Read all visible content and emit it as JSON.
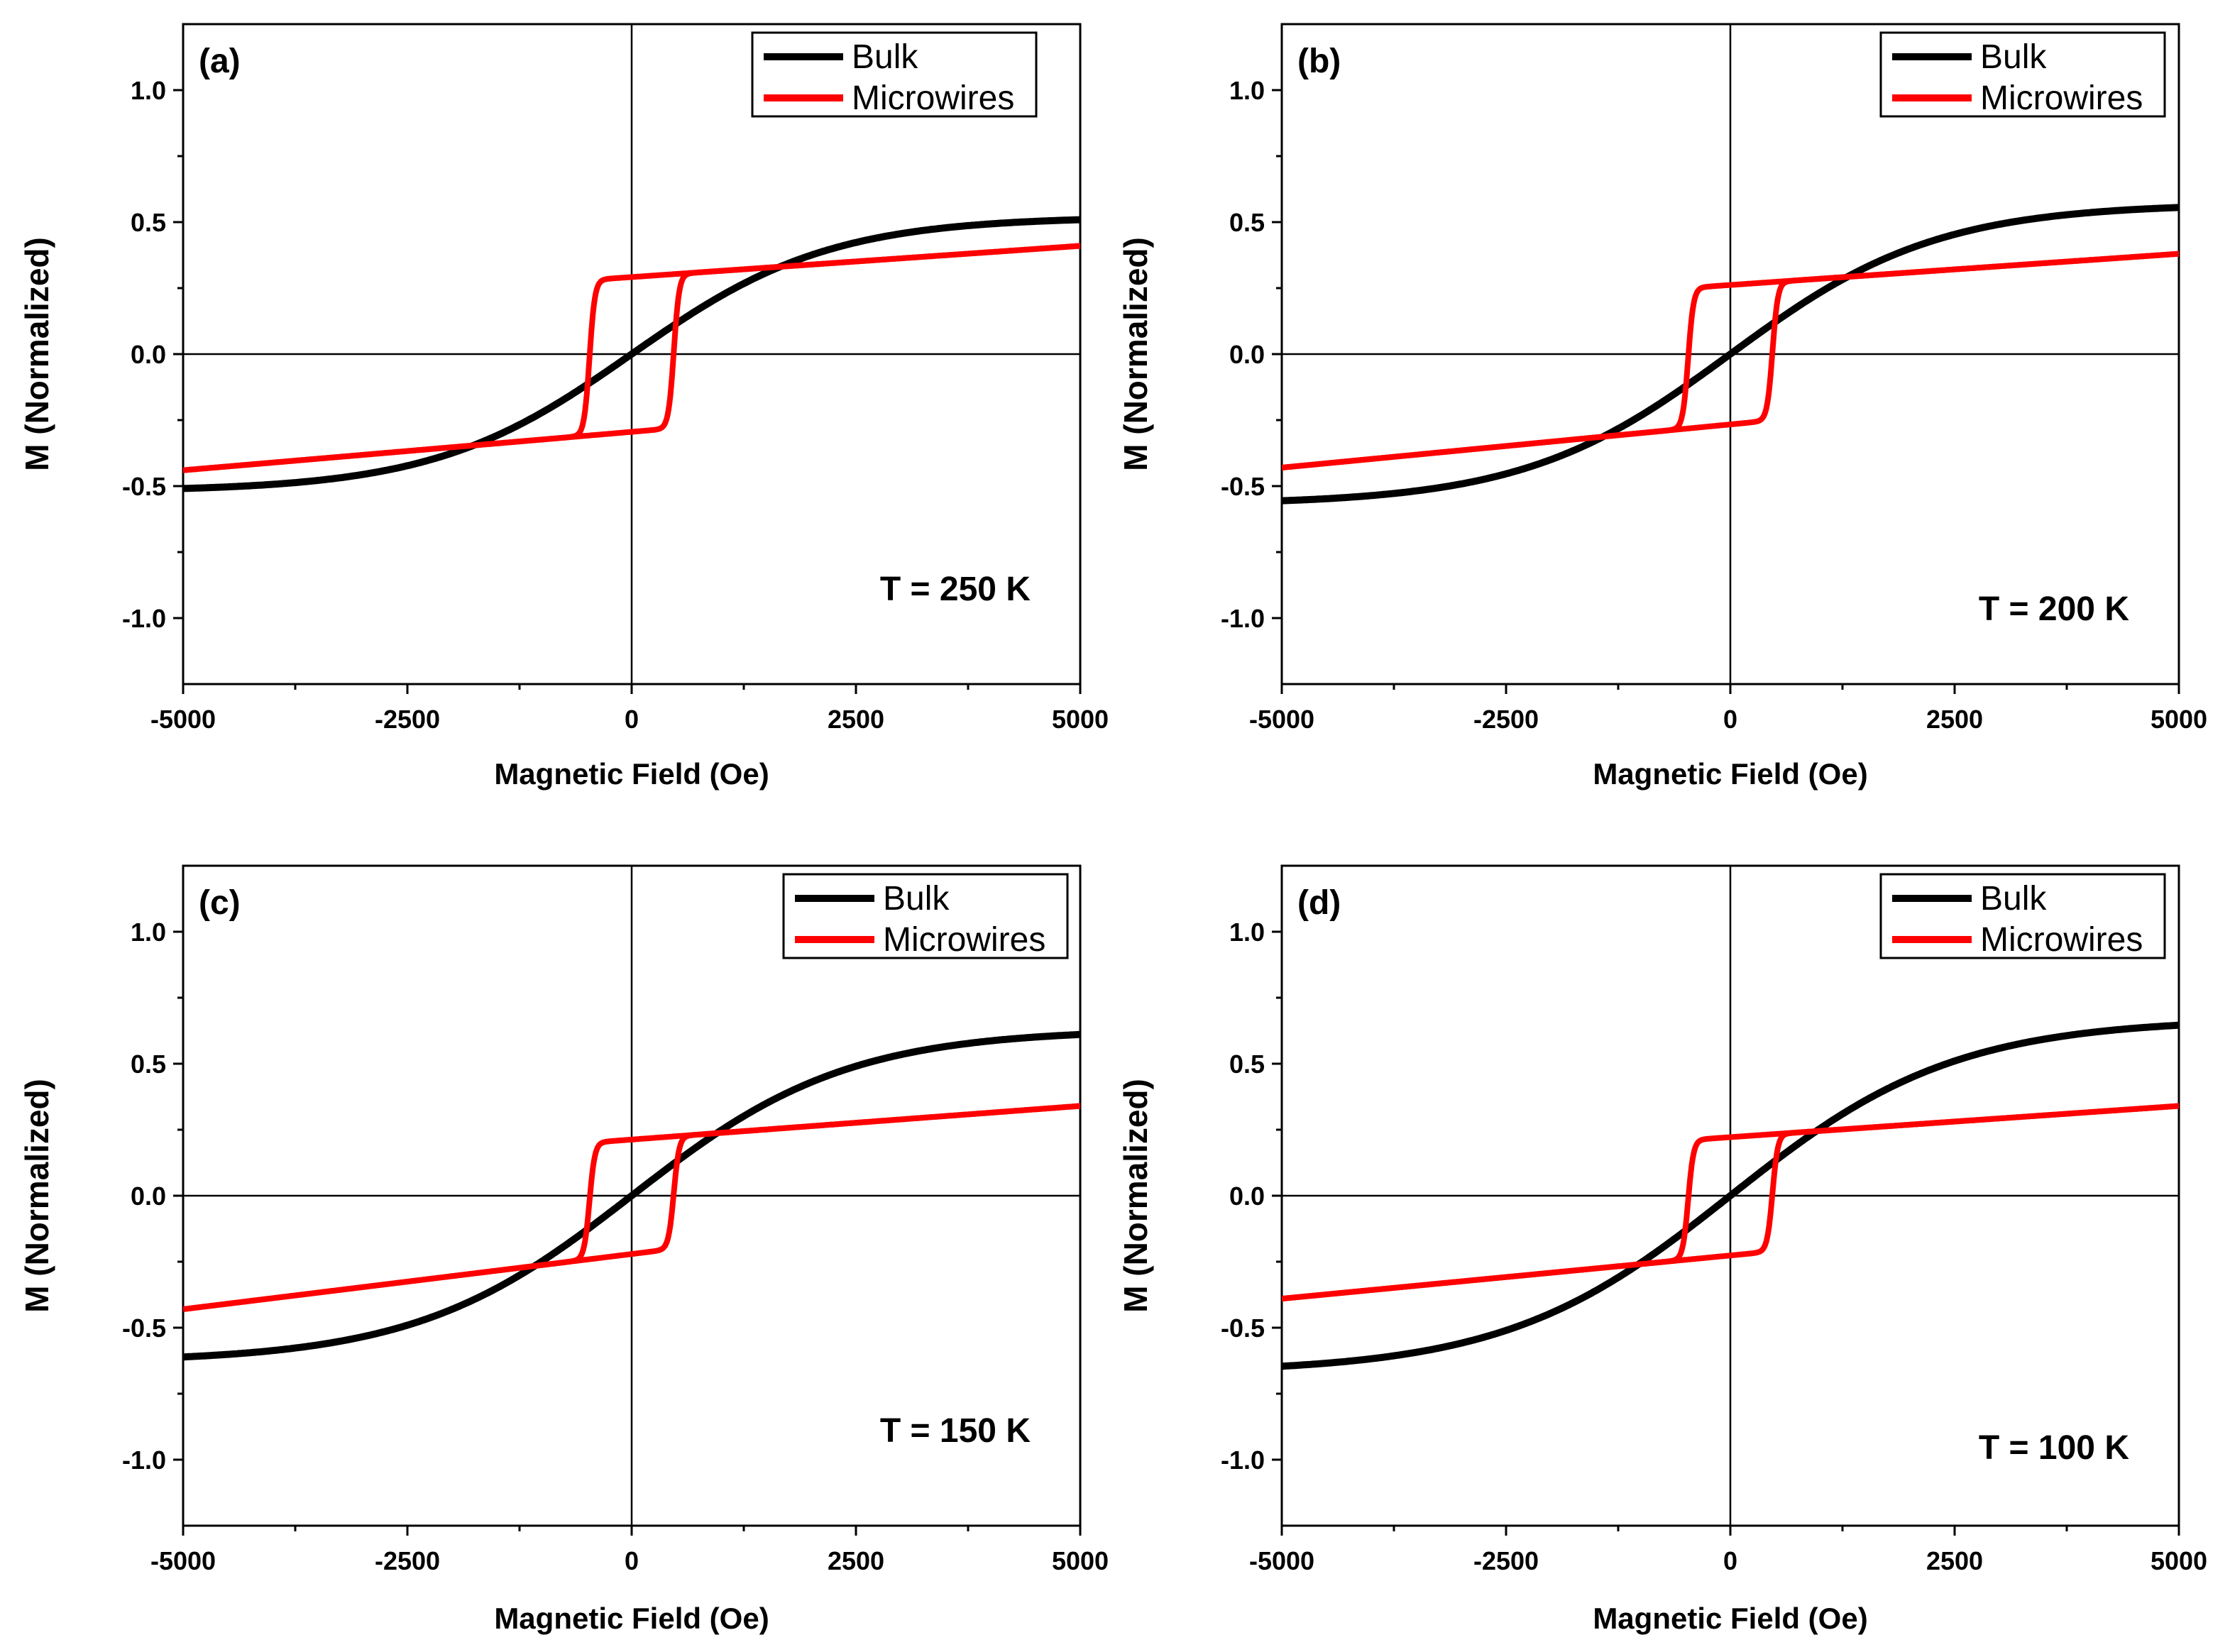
{
  "figure": {
    "description_type": "four-panel hysteresis loops"
  },
  "chart_data": [
    {
      "type": "line",
      "panel_label": "(a)",
      "annotation": "T = 250 K",
      "xlabel": "Magnetic Field (Oe)",
      "ylabel": "M (Normalized)",
      "xlim": [
        -5000,
        5000
      ],
      "ylim": [
        -1.25,
        1.25
      ],
      "xticks": [
        -5000,
        -2500,
        0,
        2500,
        5000
      ],
      "xtick_labels": [
        "-5000",
        "-2500",
        "0",
        "2500",
        "5000"
      ],
      "yticks": [
        1.0,
        0.5,
        0.0,
        -0.5,
        -1.0
      ],
      "ytick_labels": [
        "1.0",
        "0.5",
        "0.0",
        "-0.5",
        "-1.0"
      ],
      "legend_position": "top-right",
      "series": [
        {
          "name": "Bulk",
          "color": "#000000",
          "kind": "bulk",
          "ms": 0.52,
          "slope_h": 2200
        },
        {
          "name": "Microwires",
          "color": "#ff0000",
          "kind": "loop",
          "hc": 470,
          "sat": 0.28,
          "width": 60,
          "tail_pos": 0.41,
          "tail_neg": -0.44,
          "mid_pos": 0.32,
          "mid_neg": -0.32
        }
      ]
    },
    {
      "type": "line",
      "panel_label": "(b)",
      "annotation": "T = 200 K",
      "xlabel": "Magnetic Field (Oe)",
      "ylabel": "M (Normalized)",
      "xlim": [
        -5000,
        5000
      ],
      "ylim": [
        -1.25,
        1.25
      ],
      "xticks": [
        -5000,
        -2500,
        0,
        2500,
        5000
      ],
      "xtick_labels": [
        "-5000",
        "-2500",
        "0",
        "2500",
        "5000"
      ],
      "yticks": [
        1.0,
        0.5,
        0.0,
        -0.5,
        -1.0
      ],
      "ytick_labels": [
        "1.0",
        "0.5",
        "0.0",
        "-0.5",
        "-1.0"
      ],
      "legend_position": "top-right",
      "series": [
        {
          "name": "Bulk",
          "color": "#000000",
          "kind": "bulk",
          "ms": 0.57,
          "slope_h": 2300
        },
        {
          "name": "Microwires",
          "color": "#ff0000",
          "kind": "loop",
          "hc": 470,
          "sat": 0.25,
          "width": 60,
          "tail_pos": 0.38,
          "tail_neg": -0.43,
          "mid_pos": 0.3,
          "mid_neg": -0.3
        }
      ]
    },
    {
      "type": "line",
      "panel_label": "(c)",
      "annotation": "T = 150 K",
      "xlabel": "Magnetic Field (Oe)",
      "ylabel": "M (Normalized)",
      "xlim": [
        -5000,
        5000
      ],
      "ylim": [
        -1.25,
        1.25
      ],
      "xticks": [
        -5000,
        -2500,
        0,
        2500,
        5000
      ],
      "xtick_labels": [
        "-5000",
        "-2500",
        "0",
        "2500",
        "5000"
      ],
      "yticks": [
        1.0,
        0.5,
        0.0,
        -0.5,
        -1.0
      ],
      "ytick_labels": [
        "1.0",
        "0.5",
        "0.0",
        "-0.5",
        "-1.0"
      ],
      "legend_position": "top-right",
      "series": [
        {
          "name": "Bulk",
          "color": "#000000",
          "kind": "bulk",
          "ms": 0.63,
          "slope_h": 2400
        },
        {
          "name": "Microwires",
          "color": "#ff0000",
          "kind": "loop",
          "hc": 470,
          "sat": 0.2,
          "width": 60,
          "tail_pos": 0.34,
          "tail_neg": -0.43,
          "mid_pos": 0.26,
          "mid_neg": -0.29
        }
      ]
    },
    {
      "type": "line",
      "panel_label": "(d)",
      "annotation": "T = 100 K",
      "xlabel": "Magnetic Field (Oe)",
      "ylabel": "M (Normalized)",
      "xlim": [
        -5000,
        5000
      ],
      "ylim": [
        -1.25,
        1.25
      ],
      "xticks": [
        -5000,
        -2500,
        0,
        2500,
        5000
      ],
      "xtick_labels": [
        "-5000",
        "-2500",
        "0",
        "2500",
        "5000"
      ],
      "yticks": [
        1.0,
        0.5,
        0.0,
        -0.5,
        -1.0
      ],
      "ytick_labels": [
        "1.0",
        "0.5",
        "0.0",
        "-0.5",
        "-1.0"
      ],
      "legend_position": "top-right",
      "series": [
        {
          "name": "Bulk",
          "color": "#000000",
          "kind": "bulk",
          "ms": 0.67,
          "slope_h": 2500
        },
        {
          "name": "Microwires",
          "color": "#ff0000",
          "kind": "loop",
          "hc": 470,
          "sat": 0.21,
          "width": 60,
          "tail_pos": 0.34,
          "tail_neg": -0.39,
          "mid_pos": 0.27,
          "mid_neg": -0.27
        }
      ]
    }
  ]
}
